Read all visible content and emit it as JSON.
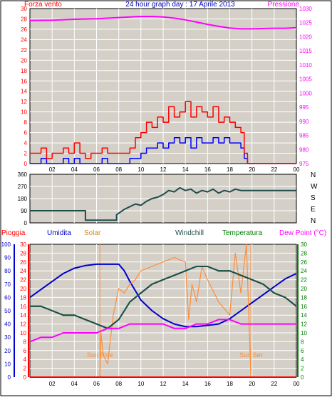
{
  "page": {
    "title": "24 hour graph day : 17 Aprile 2013",
    "background": "#ffffff",
    "plot_background": "#d4d0c8"
  },
  "colors": {
    "wind": "#ff0000",
    "gust_line": "#0000ff",
    "pressure": "#ff00ff",
    "direction": "#1e4d4d",
    "humidity": "#0000cc",
    "solar": "#ff8c3a",
    "windchill": "#1e4d4d",
    "temperature": "#008000",
    "dewpoint": "#ff00ff",
    "rain": "#ff0000",
    "grid": "#ffffff"
  },
  "chart_data": [
    {
      "id": "wind-pressure",
      "type": "line",
      "title": "24 hour graph day : 17 Aprile 2013",
      "left_label": "Forza vento",
      "right_label": "Pressione",
      "x_ticks": [
        "02",
        "04",
        "06",
        "08",
        "10",
        "12",
        "14",
        "16",
        "18",
        "20",
        "22",
        "00"
      ],
      "y_left_ticks": [
        "0",
        "2",
        "4",
        "6",
        "8",
        "10",
        "12",
        "14",
        "16",
        "18",
        "20",
        "22",
        "24",
        "26",
        "28",
        "30"
      ],
      "y_right_ticks": [
        "975",
        "980",
        "985",
        "990",
        "995",
        "1000",
        "1005",
        "1010",
        "1015",
        "1020",
        "1025",
        "1030"
      ],
      "xlim": [
        0,
        24
      ],
      "ylim_left": [
        0,
        30
      ],
      "ylim_right": [
        975,
        1030
      ],
      "series": [
        {
          "key": "pressure",
          "axis": "right",
          "x": [
            0,
            2,
            4,
            6,
            8,
            9,
            10,
            11,
            12,
            13,
            14,
            15,
            16,
            17,
            18,
            19,
            20,
            21,
            22,
            23,
            24
          ],
          "values": [
            1025.8,
            1025.9,
            1026.2,
            1026.4,
            1026.8,
            1027.0,
            1027.2,
            1027.2,
            1027.0,
            1026.6,
            1026.0,
            1025.2,
            1024.4,
            1023.7,
            1023.1,
            1022.8,
            1022.8,
            1022.9,
            1023.0,
            1023.0,
            1023.2
          ]
        },
        {
          "key": "wind_avg",
          "axis": "left",
          "x": [
            0,
            0.5,
            1,
            1.5,
            2,
            2.5,
            3,
            3.5,
            4,
            4.5,
            5,
            5.5,
            6,
            6.5,
            7,
            7.5,
            8,
            8.5,
            9,
            9.5,
            10,
            10.5,
            11,
            11.5,
            12,
            12.5,
            13,
            13.5,
            14,
            14.5,
            15,
            15.5,
            16,
            16.5,
            17,
            17.5,
            18,
            18.5,
            19,
            19.3,
            19.6,
            20,
            24
          ],
          "values": [
            0,
            0,
            1,
            0,
            0,
            0,
            1,
            0,
            1,
            0,
            0,
            0,
            0,
            1,
            0,
            0,
            0,
            0,
            1,
            1,
            2,
            3,
            3,
            4,
            3,
            4,
            5,
            4,
            5,
            3,
            5,
            4,
            4,
            5,
            4,
            5,
            4,
            4,
            3,
            1,
            0,
            0,
            0
          ]
        },
        {
          "key": "wind_gust",
          "axis": "left",
          "x": [
            0,
            0.5,
            1,
            1.5,
            2,
            2.5,
            3,
            3.5,
            4,
            4.5,
            5,
            5.5,
            6,
            6.5,
            7,
            7.5,
            8,
            8.5,
            9,
            9.5,
            10,
            10.5,
            11,
            11.5,
            12,
            12.5,
            13,
            13.5,
            14,
            14.5,
            15,
            15.5,
            16,
            16.5,
            17,
            17.5,
            18,
            18.5,
            19,
            19.3,
            19.6,
            20,
            24
          ],
          "values": [
            2,
            2,
            3,
            1,
            2,
            2,
            3,
            2,
            4,
            2,
            1,
            2,
            2,
            3,
            2,
            2,
            2,
            2,
            3,
            5,
            6,
            8,
            7,
            9,
            8,
            11,
            9,
            10,
            12,
            9,
            11,
            10,
            9,
            11,
            8,
            9,
            8,
            7,
            6,
            2,
            0,
            0,
            0
          ]
        }
      ]
    },
    {
      "id": "wind-direction",
      "type": "line",
      "y_left_ticks": [
        "0",
        "90",
        "180",
        "270",
        "360"
      ],
      "y_right_labels": [
        "N",
        "W",
        "S",
        "E",
        "N"
      ],
      "xlim": [
        0,
        24
      ],
      "ylim": [
        0,
        360
      ],
      "series": [
        {
          "key": "direction",
          "x": [
            0,
            5.0,
            5.0,
            7.8,
            7.8,
            8.5,
            9,
            9.5,
            10,
            10.5,
            11,
            11.5,
            12,
            12.5,
            13,
            13.5,
            14,
            14.5,
            15,
            15.5,
            16,
            16.5,
            17,
            17.5,
            18,
            18.5,
            19,
            19.2,
            24
          ],
          "values": [
            90,
            90,
            20,
            20,
            60,
            100,
            120,
            140,
            130,
            160,
            180,
            190,
            210,
            240,
            230,
            260,
            240,
            250,
            220,
            240,
            230,
            250,
            220,
            240,
            230,
            250,
            240,
            240,
            240
          ]
        }
      ]
    },
    {
      "id": "weather",
      "type": "line",
      "legend": [
        "Pioggia",
        "Umidita",
        "Solar",
        "Windchill",
        "Temperatura",
        "Dew Point (°C)"
      ],
      "annotations": [
        "Sun Rise",
        "Sun Set"
      ],
      "sun_rise_hour": 6.3,
      "sun_set_hour": 19.9,
      "y_left_ticks_rain": [
        "0",
        "2",
        "4",
        "6",
        "8",
        "10",
        "12",
        "14",
        "16",
        "18",
        "20",
        "22",
        "24",
        "26",
        "28",
        "30"
      ],
      "y_left_ticks_humidity": [
        "0",
        "10",
        "20",
        "30",
        "40",
        "50",
        "60",
        "70",
        "80",
        "90",
        "100"
      ],
      "y_right_ticks": [
        "0",
        "2",
        "4",
        "6",
        "8",
        "10",
        "12",
        "14",
        "16",
        "18",
        "20",
        "22",
        "24",
        "26",
        "28",
        "30"
      ],
      "xlim": [
        0,
        24
      ],
      "ylim": [
        0,
        30
      ],
      "humidity_lim": [
        0,
        100
      ],
      "series": [
        {
          "key": "humidity",
          "x": [
            0,
            1,
            2,
            3,
            4,
            5,
            6,
            7,
            8,
            8.5,
            9,
            10,
            11,
            12,
            13,
            14,
            15,
            16,
            17,
            18,
            19,
            20,
            21,
            22,
            23,
            24
          ],
          "values": [
            60,
            66,
            72,
            78,
            82,
            84,
            85,
            85,
            85,
            80,
            72,
            58,
            50,
            44,
            40,
            38,
            38,
            39,
            40,
            44,
            50,
            56,
            62,
            68,
            74,
            78
          ]
        },
        {
          "key": "solar",
          "x": [
            0,
            6.3,
            6.4,
            6.6,
            7,
            7.5,
            8,
            8.5,
            9,
            9.5,
            10,
            11,
            12,
            13,
            14,
            14.3,
            14.6,
            15,
            15.5,
            16,
            17,
            18,
            18.5,
            19,
            19.5,
            19.9,
            20,
            24
          ],
          "values": [
            0,
            0,
            10,
            5,
            3,
            14,
            20,
            19,
            21,
            22,
            24,
            25,
            26,
            27,
            26,
            13,
            21,
            17,
            25,
            22,
            17,
            14,
            28,
            19,
            30,
            0,
            0,
            0
          ]
        },
        {
          "key": "temperature",
          "x": [
            0,
            1,
            2,
            3,
            4,
            5,
            6,
            7,
            8,
            9,
            10,
            11,
            12,
            13,
            14,
            15,
            16,
            17,
            18,
            19,
            20,
            21,
            22,
            23,
            24
          ],
          "values": [
            16,
            16,
            15,
            14,
            14,
            13,
            12,
            11,
            13,
            17,
            19,
            21,
            22,
            23,
            24,
            25,
            25,
            24,
            24,
            23,
            22,
            21,
            19,
            18,
            16
          ]
        },
        {
          "key": "windchill",
          "x": [
            0,
            1,
            2,
            3,
            4,
            5,
            6,
            7,
            8,
            9,
            10,
            11,
            12,
            13,
            14,
            15,
            16,
            17,
            18,
            19,
            20,
            21,
            22,
            23,
            24
          ],
          "values": [
            16,
            16,
            15,
            14,
            14,
            13,
            12,
            11,
            13,
            17,
            19,
            21,
            22,
            23,
            24,
            25,
            25,
            24,
            24,
            23,
            22,
            21,
            19,
            18,
            16
          ]
        },
        {
          "key": "dewpoint",
          "x": [
            0,
            1,
            2,
            3,
            4,
            5,
            6,
            7,
            8,
            9,
            10,
            11,
            12,
            13,
            14,
            15,
            16,
            17,
            18,
            19,
            20,
            21,
            22,
            23,
            24
          ],
          "values": [
            8,
            9,
            9,
            10,
            10,
            10,
            10,
            11,
            11,
            12,
            12,
            12,
            12,
            11,
            11,
            12,
            12,
            13,
            13,
            12,
            12,
            12,
            12,
            12,
            12
          ]
        },
        {
          "key": "rain",
          "x": [
            0,
            24
          ],
          "values": [
            0,
            0
          ]
        }
      ]
    }
  ]
}
